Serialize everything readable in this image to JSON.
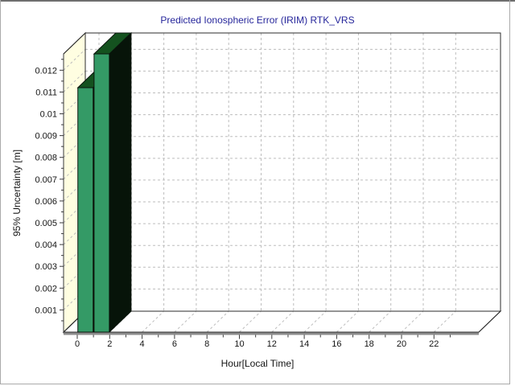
{
  "window": {
    "background": "#ffffff",
    "border_top_color": "#6e6e6e",
    "border_side_color": "#aaaaaa"
  },
  "chart_data": {
    "type": "bar",
    "projection": "3d",
    "title": "Predicted Ionospheric Error (IRIM) RTK_VRS",
    "xlabel": "Hour[Local Time]",
    "ylabel": "95% Uncertainty [m]",
    "x_ticks": [
      0,
      2,
      4,
      6,
      8,
      10,
      12,
      14,
      16,
      18,
      20,
      22
    ],
    "x_tick_labels": [
      "0",
      "2",
      "4",
      "6",
      "8",
      "10",
      "12",
      "14",
      "16",
      "18",
      "20",
      "22"
    ],
    "x_minor_step": 1,
    "x_minor_max": 24,
    "xlim": [
      -0.85,
      24.8
    ],
    "y_ticks": [
      0.001,
      0.002,
      0.003,
      0.004,
      0.005,
      0.006,
      0.007,
      0.008,
      0.009,
      0.01,
      0.011,
      0.012
    ],
    "y_tick_labels": [
      "0.001",
      "0.002",
      "0.003",
      "0.004",
      "0.005",
      "0.006",
      "0.007",
      "0.008",
      "0.009",
      "0.01",
      "0.011",
      "0.012"
    ],
    "y_minor_step": 0.0005,
    "ylim": [
      0,
      0.01275
    ],
    "grid": {
      "style": "dashed",
      "color": "#bdbdbd",
      "on": true
    },
    "legend": "none",
    "series": [
      {
        "name": "Predicted Ionospheric Error (IRIM)",
        "points": [
          {
            "x": 0,
            "y": 0.0112
          },
          {
            "x": 1,
            "y": 0.01275
          }
        ]
      }
    ],
    "colors": {
      "bar_front": "#349a66",
      "bar_top": "#14521f",
      "bar_side": "#071409",
      "bar_outline": "#0a140c",
      "left_wall": "#fffee1",
      "back_wall": "#ffffff",
      "floor": "#ffffff",
      "frame": "#2b2b2b",
      "grid": "#bdbdbd",
      "title": "#26269b",
      "text": "#141414",
      "x_axis_line": "#8c8c8c"
    }
  }
}
